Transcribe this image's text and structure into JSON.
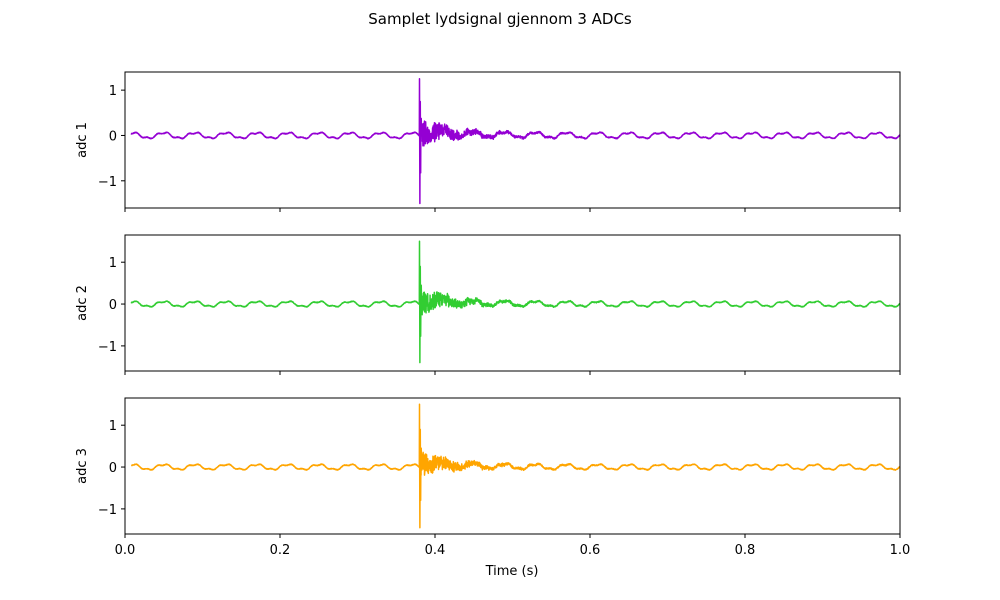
{
  "chart_data": {
    "type": "line",
    "title": "Samplet lydsignal gjennom 3 ADCs",
    "xlabel": "Time (s)",
    "xlim": [
      0.0,
      1.0
    ],
    "x_ticks": [
      0.0,
      0.2,
      0.4,
      0.6,
      0.8,
      1.0
    ],
    "x_tick_labels": [
      "0.0",
      "0.2",
      "0.4",
      "0.6",
      "0.8",
      "1.0"
    ],
    "series": [
      {
        "name": "adc 1",
        "ylabel": "adc 1",
        "color": "#9400d3",
        "ylim": [
          -1.6,
          1.4
        ],
        "y_ticks": [
          -1,
          0,
          1
        ],
        "y_tick_labels": [
          "−1",
          "0",
          "1"
        ],
        "baseline_amplitude": 0.06,
        "baseline_period_s": 0.04,
        "impulse_time_s": 0.38,
        "impulse_max": 1.25,
        "impulse_min": -1.5,
        "t_start": 0.008,
        "t_end": 1.0
      },
      {
        "name": "adc 2",
        "ylabel": "adc 2",
        "color": "#32cd32",
        "ylim": [
          -1.6,
          1.65
        ],
        "y_ticks": [
          -1,
          0,
          1
        ],
        "y_tick_labels": [
          "−1",
          "0",
          "1"
        ],
        "baseline_amplitude": 0.06,
        "baseline_period_s": 0.04,
        "impulse_time_s": 0.38,
        "impulse_max": 1.5,
        "impulse_min": -1.4,
        "t_start": 0.008,
        "t_end": 1.0
      },
      {
        "name": "adc 3",
        "ylabel": "adc 3",
        "color": "#ffa500",
        "ylim": [
          -1.6,
          1.65
        ],
        "y_ticks": [
          -1,
          0,
          1
        ],
        "y_tick_labels": [
          "−1",
          "0",
          "1"
        ],
        "baseline_amplitude": 0.06,
        "baseline_period_s": 0.04,
        "impulse_time_s": 0.38,
        "impulse_max": 1.5,
        "impulse_min": -1.45,
        "t_start": 0.008,
        "t_end": 1.0
      }
    ],
    "grid": false,
    "legend": "none",
    "shared_x": true
  }
}
